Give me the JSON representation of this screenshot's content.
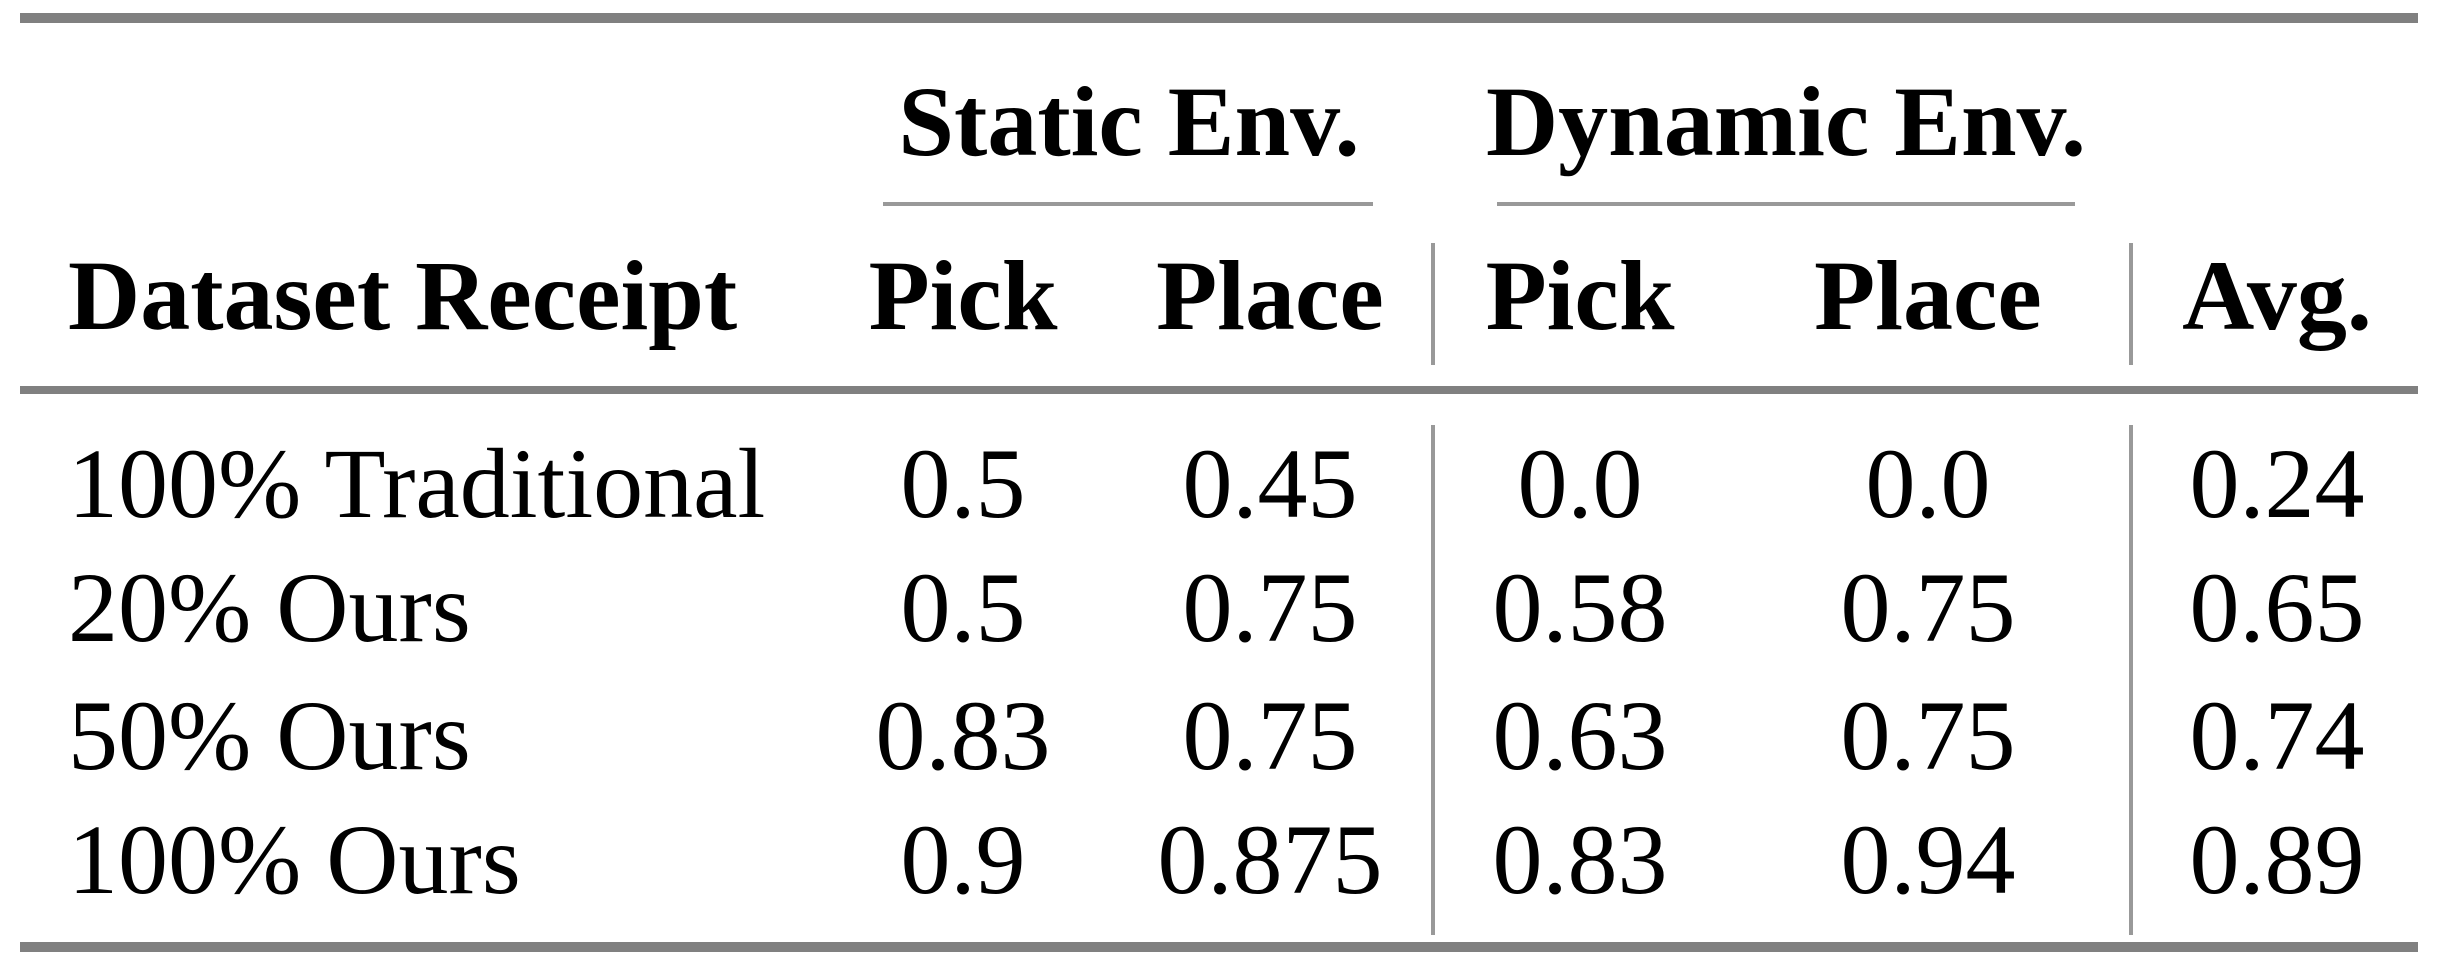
{
  "table": {
    "group_headers": {
      "static": "Static Env.",
      "dynamic": "Dynamic Env."
    },
    "column_headers": {
      "label": "Dataset Receipt",
      "static_pick": "Pick",
      "static_place": "Place",
      "dynamic_pick": "Pick",
      "dynamic_place": "Place",
      "avg": "Avg."
    },
    "rows": [
      {
        "label": "100% Traditional",
        "static_pick": "0.5",
        "static_place": "0.45",
        "dynamic_pick": "0.0",
        "dynamic_place": "0.0",
        "avg": "0.24"
      },
      {
        "label": "20% Ours",
        "static_pick": "0.5",
        "static_place": "0.75",
        "dynamic_pick": "0.58",
        "dynamic_place": "0.75",
        "avg": "0.65"
      },
      {
        "label": "50% Ours",
        "static_pick": "0.83",
        "static_place": "0.75",
        "dynamic_pick": "0.63",
        "dynamic_place": "0.75",
        "avg": "0.74"
      },
      {
        "label": "100% Ours",
        "static_pick": "0.9",
        "static_place": "0.875",
        "dynamic_pick": "0.83",
        "dynamic_place": "0.94",
        "avg": "0.89"
      }
    ],
    "colors": {
      "thick_rule": "#808080",
      "thin_rule": "#999999",
      "text": "#000000",
      "background": "#ffffff"
    }
  },
  "chart_data": {
    "type": "table",
    "title": "",
    "column_groups": [
      "Static Env.",
      "Dynamic Env."
    ],
    "columns": [
      "Dataset Receipt",
      "Static Pick",
      "Static Place",
      "Dynamic Pick",
      "Dynamic Place",
      "Avg."
    ],
    "rows": [
      [
        "100% Traditional",
        0.5,
        0.45,
        0.0,
        0.0,
        0.24
      ],
      [
        "20% Ours",
        0.5,
        0.75,
        0.58,
        0.75,
        0.65
      ],
      [
        "50% Ours",
        0.83,
        0.75,
        0.63,
        0.75,
        0.74
      ],
      [
        "100% Ours",
        0.9,
        0.875,
        0.83,
        0.94,
        0.89
      ]
    ]
  }
}
